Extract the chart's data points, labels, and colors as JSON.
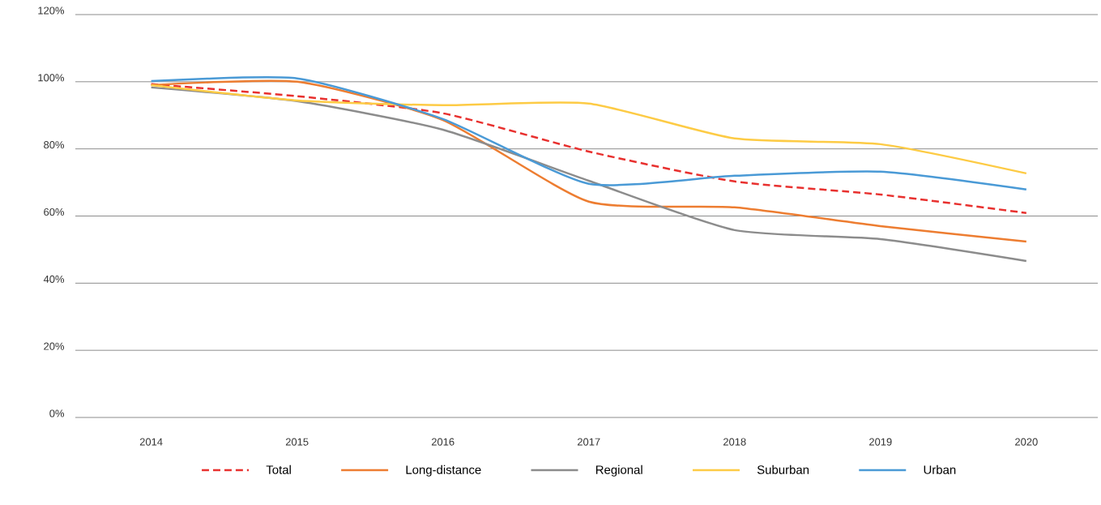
{
  "chart_data": {
    "type": "line",
    "categories": [
      "2014",
      "2015",
      "2016",
      "2017",
      "2018",
      "2019",
      "2020"
    ],
    "ylim": [
      0,
      120
    ],
    "yticks": [
      {
        "value": 0,
        "label": "0%"
      },
      {
        "value": 20,
        "label": "20%"
      },
      {
        "value": 40,
        "label": "40%"
      },
      {
        "value": 60,
        "label": "60%"
      },
      {
        "value": 80,
        "label": "80%"
      },
      {
        "value": 100,
        "label": "100%"
      },
      {
        "value": 120,
        "label": "120%"
      }
    ],
    "grid": "y",
    "legend": "bottom",
    "series": [
      {
        "name": "Total",
        "color": "#e8312f",
        "line_style": "dashed",
        "values": [
          99.3,
          95.7,
          90.6,
          79.2,
          70.3,
          66.4,
          60.9
        ]
      },
      {
        "name": "Long-distance",
        "color": "#ed7d31",
        "values": [
          99,
          100,
          88.6,
          64.3,
          62.6,
          57,
          52.4
        ]
      },
      {
        "name": "Regional",
        "color": "#8c8c8c",
        "values": [
          98.3,
          94.2,
          85.7,
          70.5,
          55.8,
          53.1,
          46.6
        ]
      },
      {
        "name": "Suburban",
        "color": "#fdcb45",
        "values": [
          99,
          94.4,
          93,
          93.5,
          83.1,
          81.4,
          72.7
        ]
      },
      {
        "name": "Urban",
        "color": "#4a9ad6",
        "values": [
          100.2,
          101,
          88.9,
          69.6,
          72,
          73.2,
          67.9
        ]
      }
    ]
  }
}
